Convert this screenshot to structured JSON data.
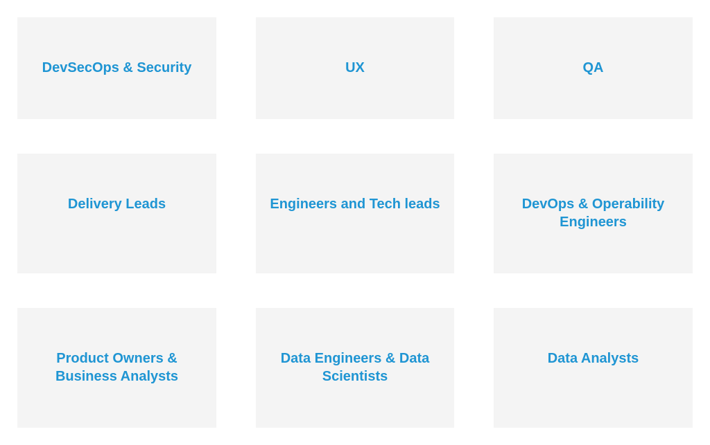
{
  "cards": [
    {
      "label": "DevSecOps & Security"
    },
    {
      "label": "UX"
    },
    {
      "label": "QA"
    },
    {
      "label": "Delivery Leads"
    },
    {
      "label": "Engineers and Tech leads"
    },
    {
      "label": "DevOps & Operability Engineers"
    },
    {
      "label": "Product Owners & Business Analysts"
    },
    {
      "label": "Data Engineers & Data Scientists"
    },
    {
      "label": "Data Analysts"
    }
  ],
  "colors": {
    "card_background": "#f4f4f4",
    "label_text": "#1f95d3",
    "page_background": "#ffffff"
  }
}
